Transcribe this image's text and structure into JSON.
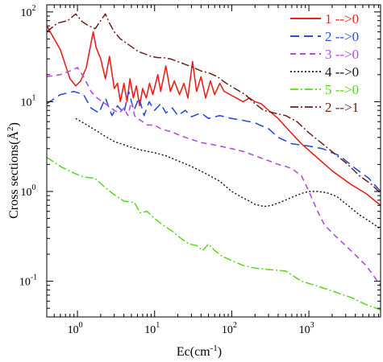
{
  "chart_data": {
    "type": "line",
    "xlabel": "Ec(cm",
    "xlabel_sup": "-1",
    "xlabel_end": ")",
    "ylabel": "Cross sections(Å",
    "ylabel_sup": "2",
    "ylabel_end": ")",
    "xscale": "log",
    "yscale": "log",
    "xlim": [
      0.4,
      8500
    ],
    "ylim": [
      0.04,
      120
    ],
    "grid": false,
    "legend_position": "top-right",
    "x_ticks": [
      {
        "base": "10",
        "exp": "0",
        "value": 1
      },
      {
        "base": "10",
        "exp": "1",
        "value": 10
      },
      {
        "base": "10",
        "exp": "2",
        "value": 100
      },
      {
        "base": "10",
        "exp": "3",
        "value": 1000
      }
    ],
    "y_ticks": [
      {
        "base": "10",
        "exp": "-1",
        "value": 0.1
      },
      {
        "base": "10",
        "exp": "0",
        "value": 1
      },
      {
        "base": "10",
        "exp": "1",
        "value": 10
      },
      {
        "base": "10",
        "exp": "2",
        "value": 100
      }
    ],
    "series": [
      {
        "name": "1 -->0",
        "color": "#e8231b",
        "dash": "",
        "width": 1.6,
        "points": [
          [
            0.4,
            70
          ],
          [
            0.6,
            38
          ],
          [
            0.8,
            18
          ],
          [
            0.95,
            15
          ],
          [
            1.1,
            17
          ],
          [
            1.3,
            24
          ],
          [
            1.5,
            45
          ],
          [
            1.6,
            60
          ],
          [
            1.75,
            40
          ],
          [
            2.0,
            30
          ],
          [
            2.3,
            18
          ],
          [
            2.6,
            32
          ],
          [
            3.0,
            14
          ],
          [
            3.3,
            16
          ],
          [
            3.6,
            10
          ],
          [
            4.0,
            16
          ],
          [
            4.4,
            10
          ],
          [
            4.8,
            18
          ],
          [
            5.3,
            11
          ],
          [
            5.8,
            15
          ],
          [
            6.4,
            9
          ],
          [
            7.0,
            14
          ],
          [
            7.8,
            11
          ],
          [
            8.6,
            16
          ],
          [
            9.5,
            12
          ],
          [
            11,
            20
          ],
          [
            12,
            13
          ],
          [
            14,
            25
          ],
          [
            16,
            13
          ],
          [
            18,
            17
          ],
          [
            21,
            12
          ],
          [
            24,
            16
          ],
          [
            27,
            11
          ],
          [
            31,
            28
          ],
          [
            35,
            13
          ],
          [
            40,
            19
          ],
          [
            46,
            11
          ],
          [
            53,
            17
          ],
          [
            60,
            12
          ],
          [
            70,
            16
          ],
          [
            80,
            13
          ],
          [
            95,
            12
          ],
          [
            115,
            11
          ],
          [
            140,
            10
          ],
          [
            170,
            11
          ],
          [
            200,
            10
          ],
          [
            240,
            9.5
          ],
          [
            300,
            8
          ],
          [
            400,
            6.5
          ],
          [
            550,
            4.8
          ],
          [
            800,
            3.4
          ],
          [
            1200,
            2.5
          ],
          [
            2000,
            1.7
          ],
          [
            3500,
            1.2
          ],
          [
            5500,
            0.95
          ],
          [
            8500,
            0.7
          ]
        ]
      },
      {
        "name": "2 -->0",
        "color": "#2a4fd6",
        "dash": "11,6",
        "width": 1.6,
        "points": [
          [
            0.4,
            9.5
          ],
          [
            0.6,
            12
          ],
          [
            0.9,
            13
          ],
          [
            1.2,
            12
          ],
          [
            1.5,
            8.5
          ],
          [
            1.9,
            7.5
          ],
          [
            2.3,
            11
          ],
          [
            2.8,
            7
          ],
          [
            3.3,
            9
          ],
          [
            4.0,
            7.5
          ],
          [
            4.6,
            13
          ],
          [
            5.4,
            8
          ],
          [
            6.3,
            11
          ],
          [
            7.3,
            7
          ],
          [
            8.5,
            10
          ],
          [
            10,
            8
          ],
          [
            12,
            9.5
          ],
          [
            14,
            7.5
          ],
          [
            17,
            8.5
          ],
          [
            20,
            7
          ],
          [
            25,
            8
          ],
          [
            30,
            6.8
          ],
          [
            40,
            7.5
          ],
          [
            50,
            6.5
          ],
          [
            70,
            7
          ],
          [
            100,
            6.5
          ],
          [
            140,
            6.2
          ],
          [
            200,
            5.8
          ],
          [
            300,
            5
          ],
          [
            400,
            4
          ],
          [
            600,
            3.4
          ],
          [
            1000,
            3.2
          ],
          [
            1500,
            3
          ],
          [
            2500,
            2.5
          ],
          [
            4000,
            1.8
          ],
          [
            6000,
            1.4
          ],
          [
            8500,
            1
          ]
        ]
      },
      {
        "name": "3 -->0",
        "color": "#b44ce6",
        "dash": "7,5",
        "width": 1.6,
        "points": [
          [
            0.4,
            19
          ],
          [
            0.6,
            20
          ],
          [
            0.8,
            22
          ],
          [
            1.0,
            24
          ],
          [
            1.2,
            19
          ],
          [
            1.5,
            13
          ],
          [
            1.8,
            11
          ],
          [
            2.1,
            10
          ],
          [
            2.5,
            9
          ],
          [
            3.0,
            8
          ],
          [
            3.5,
            7.5
          ],
          [
            4.0,
            8.5
          ],
          [
            4.5,
            7
          ],
          [
            5.0,
            10
          ],
          [
            5.5,
            7
          ],
          [
            6.0,
            6.5
          ],
          [
            7.0,
            6
          ],
          [
            8.0,
            5.5
          ],
          [
            10,
            5.5
          ],
          [
            12,
            5
          ],
          [
            14,
            4.8
          ],
          [
            17,
            4.6
          ],
          [
            20,
            4.3
          ],
          [
            25,
            4
          ],
          [
            30,
            3.8
          ],
          [
            40,
            3.5
          ],
          [
            50,
            3.4
          ],
          [
            70,
            3.2
          ],
          [
            100,
            3
          ],
          [
            140,
            2.8
          ],
          [
            200,
            2.5
          ],
          [
            300,
            2.2
          ],
          [
            400,
            2
          ],
          [
            500,
            1.9
          ],
          [
            600,
            1.8
          ],
          [
            800,
            1.5
          ],
          [
            1000,
            1
          ],
          [
            1300,
            0.6
          ],
          [
            1600,
            0.42
          ],
          [
            2200,
            0.32
          ],
          [
            3500,
            0.22
          ],
          [
            5500,
            0.15
          ],
          [
            8500,
            0.09
          ]
        ]
      },
      {
        "name": "4 -->0",
        "color": "#111111",
        "dash": "2,2.5",
        "width": 1.4,
        "points": [
          [
            0.95,
            6.5
          ],
          [
            1.2,
            5.8
          ],
          [
            1.6,
            5
          ],
          [
            2.2,
            4.2
          ],
          [
            3.0,
            3.6
          ],
          [
            4.5,
            3.2
          ],
          [
            6.5,
            2.9
          ],
          [
            10,
            2.7
          ],
          [
            14,
            2.5
          ],
          [
            20,
            2.2
          ],
          [
            30,
            1.9
          ],
          [
            45,
            1.6
          ],
          [
            70,
            1.3
          ],
          [
            100,
            1
          ],
          [
            140,
            0.85
          ],
          [
            200,
            0.72
          ],
          [
            260,
            0.68
          ],
          [
            330,
            0.7
          ],
          [
            430,
            0.76
          ],
          [
            600,
            0.86
          ],
          [
            800,
            0.95
          ],
          [
            1000,
            1
          ],
          [
            1300,
            1
          ],
          [
            1700,
            0.97
          ],
          [
            2300,
            0.88
          ],
          [
            3200,
            0.7
          ],
          [
            4500,
            0.55
          ],
          [
            6500,
            0.45
          ],
          [
            8500,
            0.38
          ]
        ]
      },
      {
        "name": "5 -->0",
        "color": "#5bd51c",
        "dash": "10,3,2,3",
        "width": 1.5,
        "points": [
          [
            0.4,
            2.4
          ],
          [
            0.6,
            1.9
          ],
          [
            0.9,
            1.6
          ],
          [
            1.2,
            1.45
          ],
          [
            1.7,
            1.4
          ],
          [
            2.3,
            1.1
          ],
          [
            3.0,
            0.92
          ],
          [
            4.0,
            0.78
          ],
          [
            5.5,
            0.75
          ],
          [
            6.5,
            0.58
          ],
          [
            8,
            0.6
          ],
          [
            10,
            0.5
          ],
          [
            13,
            0.42
          ],
          [
            17,
            0.36
          ],
          [
            22,
            0.3
          ],
          [
            28,
            0.26
          ],
          [
            35,
            0.25
          ],
          [
            42,
            0.22
          ],
          [
            50,
            0.26
          ],
          [
            60,
            0.22
          ],
          [
            75,
            0.19
          ],
          [
            100,
            0.17
          ],
          [
            140,
            0.15
          ],
          [
            200,
            0.14
          ],
          [
            300,
            0.135
          ],
          [
            500,
            0.13
          ],
          [
            800,
            0.1
          ],
          [
            1200,
            0.09
          ],
          [
            2000,
            0.078
          ],
          [
            3500,
            0.066
          ],
          [
            5500,
            0.055
          ],
          [
            8500,
            0.048
          ]
        ]
      },
      {
        "name": "2 -->1",
        "color": "#6b1f17",
        "dash": "10,3,2,3",
        "width": 1.5,
        "points": [
          [
            0.4,
            60
          ],
          [
            0.55,
            75
          ],
          [
            0.75,
            80
          ],
          [
            0.95,
            95
          ],
          [
            1.15,
            78
          ],
          [
            1.4,
            70
          ],
          [
            1.7,
            65
          ],
          [
            2.0,
            80
          ],
          [
            2.3,
            95
          ],
          [
            2.6,
            75
          ],
          [
            3.0,
            60
          ],
          [
            3.6,
            50
          ],
          [
            4.3,
            45
          ],
          [
            5.2,
            40
          ],
          [
            6.2,
            36
          ],
          [
            7.5,
            34
          ],
          [
            9,
            32
          ],
          [
            11,
            31
          ],
          [
            13,
            31
          ],
          [
            16,
            30
          ],
          [
            20,
            28
          ],
          [
            25,
            26
          ],
          [
            32,
            24
          ],
          [
            40,
            22
          ],
          [
            50,
            21
          ],
          [
            65,
            19
          ],
          [
            85,
            16
          ],
          [
            110,
            14
          ],
          [
            150,
            12
          ],
          [
            200,
            9.5
          ],
          [
            260,
            8
          ],
          [
            350,
            7.5
          ],
          [
            500,
            7
          ],
          [
            700,
            6
          ],
          [
            1000,
            4.5
          ],
          [
            1500,
            3.4
          ],
          [
            2200,
            2.6
          ],
          [
            3200,
            2
          ],
          [
            4500,
            1.5
          ],
          [
            6500,
            1.2
          ],
          [
            8500,
            0.95
          ]
        ]
      }
    ]
  }
}
